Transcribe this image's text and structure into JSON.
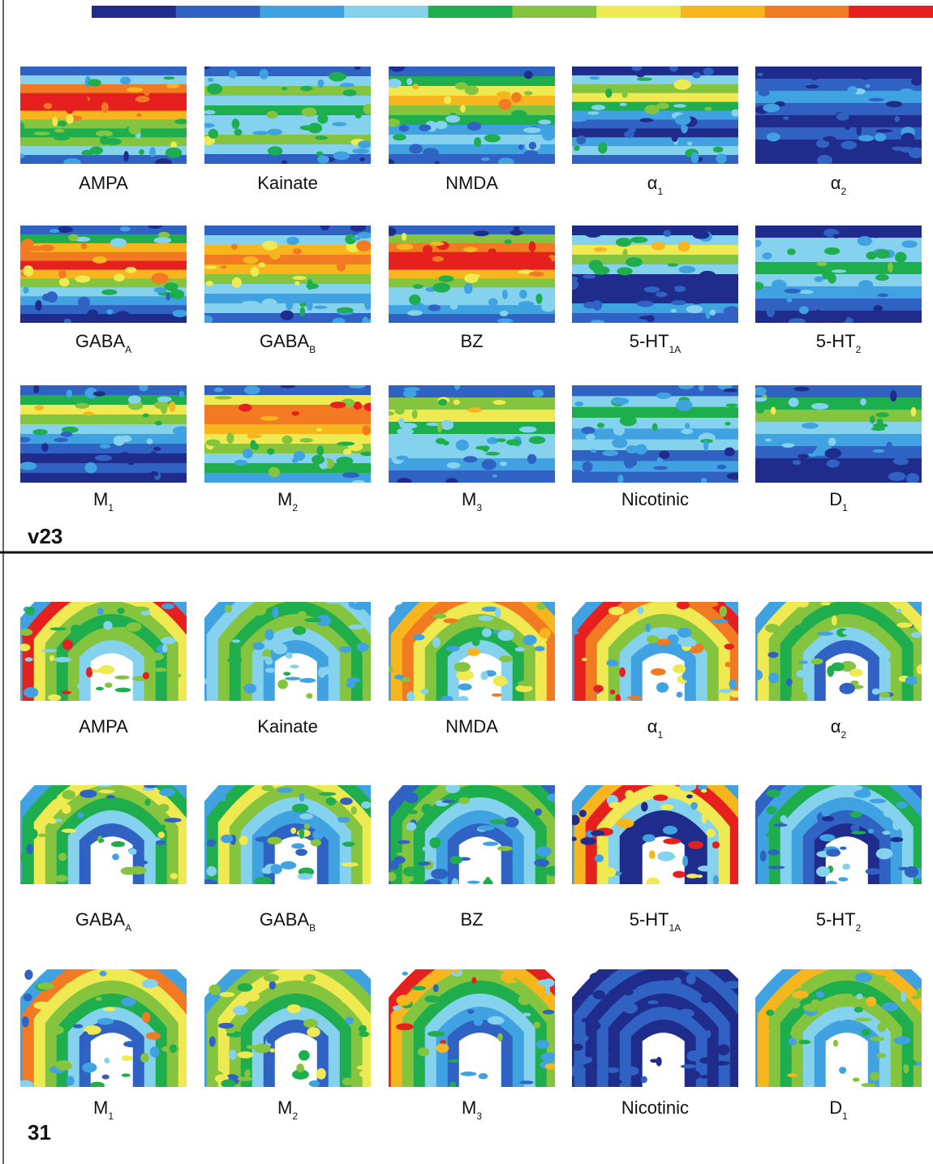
{
  "colorbar": {
    "colors": [
      "#1f2c8c",
      "#2f62c2",
      "#40a2e0",
      "#84d2ee",
      "#1fae4e",
      "#84c43e",
      "#efea52",
      "#f8b61e",
      "#f17a22",
      "#e6201f"
    ]
  },
  "panels": [
    {
      "label": "v23",
      "items": [
        {
          "name": "AMPA"
        },
        {
          "name": "Kainate"
        },
        {
          "name": "NMDA"
        },
        {
          "name": "α",
          "sub": "1"
        },
        {
          "name": "α",
          "sub": "2"
        },
        {
          "name": "GABA",
          "sub": "A"
        },
        {
          "name": "GABA",
          "sub": "B"
        },
        {
          "name": "BZ"
        },
        {
          "name": "5-HT",
          "sub": "1A"
        },
        {
          "name": "5-HT",
          "sub": "2"
        },
        {
          "name": "M",
          "sub": "1"
        },
        {
          "name": "M",
          "sub": "2"
        },
        {
          "name": "M",
          "sub": "3"
        },
        {
          "name": "Nicotinic"
        },
        {
          "name": "D",
          "sub": "1"
        }
      ]
    },
    {
      "label": "31",
      "items": [
        {
          "name": "AMPA"
        },
        {
          "name": "Kainate"
        },
        {
          "name": "NMDA"
        },
        {
          "name": "α",
          "sub": "1"
        },
        {
          "name": "α",
          "sub": "2"
        },
        {
          "name": "GABA",
          "sub": "A"
        },
        {
          "name": "GABA",
          "sub": "B"
        },
        {
          "name": "BZ"
        },
        {
          "name": "5-HT",
          "sub": "1A"
        },
        {
          "name": "5-HT",
          "sub": "2"
        },
        {
          "name": "M",
          "sub": "1"
        },
        {
          "name": "M",
          "sub": "2"
        },
        {
          "name": "M",
          "sub": "3"
        },
        {
          "name": "Nicotinic"
        },
        {
          "name": "D",
          "sub": "1"
        }
      ]
    }
  ]
}
